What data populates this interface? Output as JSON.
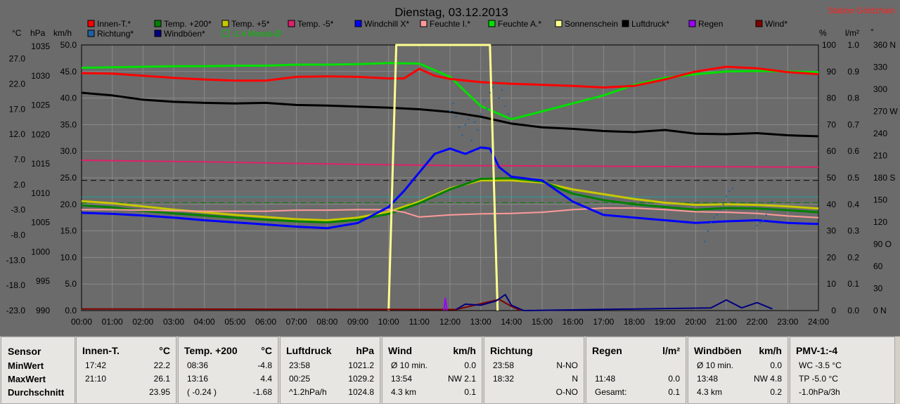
{
  "title": "Dienstag, 03.12.2013",
  "station": "Station Göritzhain",
  "legend": [
    {
      "label": "Innen-T.*",
      "color": "#ff0000"
    },
    {
      "label": "Temp. +200*",
      "color": "#008000"
    },
    {
      "label": "Temp. +5*",
      "color": "#c8c800"
    },
    {
      "label": "Temp. -5*",
      "color": "#e0206a"
    },
    {
      "label": "Windchill X*",
      "color": "#0000ff"
    },
    {
      "label": "Feuchte I.*",
      "color": "#ff9a9a"
    },
    {
      "label": "Feuchte A.*",
      "color": "#00e000"
    },
    {
      "label": "Sonnenschein",
      "color": "#ffff90"
    },
    {
      "label": "Luftdruck*",
      "color": "#000000"
    },
    {
      "label": "Regen",
      "color": "#9a00ff"
    },
    {
      "label": "Wind*",
      "color": "#800000"
    },
    {
      "label": "Richtung*",
      "color": "#2060a0"
    },
    {
      "label": "Windböen*",
      "color": "#000080"
    },
    {
      "label": "-1.4 Monat-Ø",
      "color": "#00c000"
    }
  ],
  "axis_units": {
    "celsius": "°C",
    "hpa": "hPa",
    "kmh": "km/h",
    "percent": "%",
    "lm2": "l/m²",
    "deg": "°"
  },
  "chart_data": {
    "type": "line",
    "x_ticks": [
      "00:00",
      "01:00",
      "02:00",
      "03:00",
      "04:00",
      "05:00",
      "06:00",
      "07:00",
      "08:00",
      "09:00",
      "10:00",
      "11:00",
      "12:00",
      "13:00",
      "14:00",
      "15:00",
      "16:00",
      "17:00",
      "18:00",
      "19:00",
      "20:00",
      "21:00",
      "22:00",
      "23:00",
      "24:00"
    ],
    "xlim": [
      0,
      24
    ],
    "y_celsius_ticks": [
      "27.0",
      "22.0",
      "17.0",
      "12.0",
      "7.0",
      "2.0",
      "-3.0",
      "-8.0",
      "-13.0",
      "-18.0",
      "-23.0"
    ],
    "y_hpa_ticks": [
      "1035",
      "1030",
      "1025",
      "1020",
      "1015",
      "1010",
      "1005",
      "1000",
      "995",
      "990"
    ],
    "y_kmh_ticks": [
      "50.0",
      "45.0",
      "40.0",
      "35.0",
      "30.0",
      "25.0",
      "20.0",
      "15.0",
      "10.0",
      "5.0",
      "0.0"
    ],
    "y_percent_ticks": [
      "100",
      "90",
      "80",
      "70",
      "60",
      "50",
      "40",
      "30",
      "20",
      "10",
      "0"
    ],
    "y_lm2_ticks": [
      "1.0",
      "0.9",
      "0.8",
      "0.7",
      "0.6",
      "0.5",
      "0.4",
      "0.3",
      "0.2",
      "0.1",
      "0.0"
    ],
    "y_deg_ticks": [
      "360 N",
      "330",
      "300",
      "270 W",
      "240",
      "210",
      "180 S",
      "150",
      "120",
      "90 O",
      "60",
      "30",
      "0 N"
    ],
    "ylim_kmh": [
      0,
      50
    ],
    "grid": true,
    "series": [
      {
        "name": "Luftdruck*",
        "axis": "kmh",
        "color": "#000000",
        "x": [
          0,
          1,
          2,
          3,
          4,
          5,
          6,
          7,
          8,
          9,
          10,
          11,
          12,
          13,
          14,
          15,
          16,
          17,
          18,
          19,
          20,
          21,
          22,
          23,
          24
        ],
        "y": [
          41.0,
          40.5,
          39.7,
          39.3,
          39.1,
          39.0,
          39.1,
          38.7,
          38.6,
          38.4,
          38.2,
          37.9,
          37.4,
          36.5,
          35.2,
          34.5,
          34.2,
          33.8,
          33.6,
          34.0,
          33.3,
          33.2,
          33.4,
          33.0,
          32.8
        ]
      },
      {
        "name": "Feuchte A.*",
        "axis": "kmh",
        "color": "#00e000",
        "x": [
          0,
          1,
          2,
          3,
          4,
          5,
          6,
          7,
          8,
          9,
          10,
          11,
          12,
          13,
          14,
          15,
          16,
          17,
          18,
          19,
          20,
          21,
          22,
          23,
          24
        ],
        "y": [
          45.7,
          45.8,
          45.9,
          46.0,
          46.0,
          46.1,
          46.1,
          46.3,
          46.3,
          46.4,
          46.6,
          46.5,
          44.0,
          38.5,
          36.0,
          37.5,
          39.0,
          40.5,
          42.5,
          43.8,
          44.5,
          45.0,
          45.1,
          45.0,
          44.9
        ]
      },
      {
        "name": "Innen-T.*",
        "axis": "kmh",
        "color": "#ff0000",
        "x": [
          0,
          1,
          2,
          3,
          4,
          5,
          6,
          7,
          8,
          9,
          10,
          10.5,
          11,
          11.5,
          12,
          13,
          14,
          15,
          16,
          17,
          18,
          19,
          20,
          21,
          22,
          23,
          24
        ],
        "y": [
          44.7,
          44.6,
          44.2,
          43.8,
          43.5,
          43.3,
          43.3,
          44.0,
          44.1,
          44.0,
          43.7,
          43.7,
          45.5,
          44.2,
          43.6,
          43.0,
          42.7,
          42.5,
          42.3,
          42.0,
          42.3,
          43.5,
          45.0,
          45.9,
          45.6,
          44.9,
          44.5
        ]
      },
      {
        "name": "Temp. -5*",
        "axis": "kmh",
        "color": "#e0206a",
        "x": [
          0,
          4,
          8,
          12,
          16,
          20,
          24
        ],
        "y": [
          28.3,
          28.0,
          27.6,
          27.3,
          27.2,
          27.1,
          27.0
        ]
      },
      {
        "name": "Temp. +5*",
        "axis": "kmh",
        "color": "#c8c800",
        "x": [
          0,
          1,
          2,
          3,
          4,
          5,
          6,
          7,
          8,
          9,
          10,
          11,
          12,
          13,
          14,
          15,
          16,
          17,
          18,
          19,
          20,
          21,
          22,
          23,
          24
        ],
        "y": [
          20.6,
          20.2,
          19.6,
          19.0,
          18.5,
          18.0,
          17.6,
          17.2,
          17.0,
          17.5,
          18.6,
          20.5,
          23.0,
          24.5,
          24.5,
          24.1,
          22.8,
          21.9,
          21.0,
          20.3,
          19.9,
          20.0,
          19.9,
          19.6,
          19.2
        ]
      },
      {
        "name": "Temp. +200*",
        "axis": "kmh",
        "color": "#008000",
        "x": [
          0,
          1,
          2,
          3,
          4,
          5,
          6,
          7,
          8,
          9,
          10,
          11,
          12,
          13,
          14,
          15,
          16,
          17,
          18,
          19,
          20,
          21,
          22,
          23,
          24
        ],
        "y": [
          19.8,
          19.4,
          18.8,
          18.3,
          17.9,
          17.5,
          17.1,
          16.8,
          16.6,
          17.1,
          18.2,
          20.2,
          22.8,
          24.8,
          24.9,
          24.3,
          22.0,
          20.8,
          20.0,
          19.5,
          19.0,
          19.3,
          19.2,
          18.9,
          18.5
        ]
      },
      {
        "name": "Feuchte I.*",
        "axis": "kmh",
        "color": "#ff9a9a",
        "x": [
          0,
          1,
          2,
          3,
          4,
          5,
          6,
          7,
          8,
          9,
          10,
          10.5,
          11,
          12,
          13,
          14,
          15,
          16,
          17,
          18,
          19,
          20,
          21,
          22,
          23,
          24
        ],
        "y": [
          19.0,
          19.0,
          18.9,
          18.8,
          18.7,
          18.7,
          18.7,
          18.9,
          18.9,
          19.0,
          19.0,
          18.5,
          17.6,
          18.0,
          18.2,
          18.3,
          18.5,
          19.0,
          19.3,
          19.3,
          19.0,
          18.6,
          18.5,
          18.3,
          17.8,
          17.5
        ]
      },
      {
        "name": "Windchill X*",
        "axis": "kmh",
        "color": "#0000ff",
        "x": [
          0,
          1,
          2,
          3,
          4,
          5,
          6,
          7,
          8,
          9,
          10,
          10.5,
          11,
          11.5,
          12,
          12.5,
          13,
          13.3,
          13.6,
          14,
          15,
          16,
          17,
          18,
          19,
          20,
          21,
          22,
          23,
          24
        ],
        "y": [
          18.4,
          18.2,
          17.9,
          17.5,
          17.0,
          16.6,
          16.2,
          15.8,
          15.5,
          16.5,
          19.5,
          22.5,
          26.0,
          29.5,
          30.5,
          29.5,
          30.7,
          30.5,
          27.0,
          25.2,
          24.5,
          20.5,
          18.0,
          17.5,
          17.0,
          16.5,
          16.8,
          17.0,
          16.5,
          16.3
        ]
      },
      {
        "name": "Sonnenschein",
        "axis": "kmh",
        "color": "#ffff90",
        "x": [
          10.0,
          10.25,
          13.3,
          13.55
        ],
        "y": [
          0,
          50,
          50,
          0
        ]
      },
      {
        "name": "Wind*",
        "axis": "kmh",
        "color": "#800000",
        "x": [
          0,
          0.9,
          12.2,
          12.8,
          13.6,
          14.0,
          14.3
        ],
        "y": [
          0.3,
          0.3,
          0.2,
          1.0,
          2.1,
          0.8,
          0.0
        ]
      },
      {
        "name": "Windböen*",
        "axis": "kmh",
        "color": "#000080",
        "x": [
          12.2,
          12.5,
          13.0,
          13.5,
          13.8,
          14.0,
          14.4,
          20.5,
          21.0,
          21.5,
          22.0,
          22.5
        ],
        "y": [
          0.2,
          1.2,
          1.0,
          1.8,
          3.0,
          1.0,
          0.0,
          0.5,
          2.0,
          0.5,
          1.5,
          0.3
        ]
      },
      {
        "name": "Regen",
        "axis": "kmh",
        "color": "#9a00ff",
        "x": [
          11.8,
          11.85,
          11.9
        ],
        "y": [
          0,
          2.3,
          0
        ]
      }
    ],
    "reference_lines": [
      {
        "axis": "kmh",
        "value": 24.5,
        "color": "#000000",
        "style": "dashed"
      },
      {
        "axis": "kmh",
        "value": 20.3,
        "color": "#008000",
        "style": "dashed"
      },
      {
        "axis": "kmh",
        "value": 21.4,
        "color": "#20a0a0",
        "style": "solid"
      }
    ],
    "direction_points": {
      "color": "#2060a0",
      "x": [
        12.0,
        12.1,
        12.2,
        12.3,
        12.4,
        12.5,
        12.6,
        12.7,
        12.8,
        12.9,
        13.0,
        13.1,
        13.2,
        13.3,
        13.4,
        13.5,
        13.6,
        13.7,
        13.8,
        13.9,
        20.3,
        20.4,
        20.5,
        20.6,
        20.7,
        20.8,
        20.9,
        21.0,
        21.1,
        21.2,
        22.0,
        22.1,
        22.2,
        22.3,
        22.4,
        22.5
      ],
      "y": [
        37.5,
        39.0,
        36.5,
        34.5,
        33.0,
        35.0,
        36.0,
        32.0,
        35.5,
        34.0,
        37.0,
        39.5,
        38.0,
        41.0,
        42.0,
        43.0,
        40.0,
        41.5,
        38.5,
        37.0,
        13.0,
        15.0,
        16.5,
        17.5,
        18.0,
        19.0,
        20.0,
        21.5,
        22.5,
        23.0,
        16.0,
        16.5,
        17.0,
        18.0,
        19.0,
        20.5
      ]
    }
  },
  "table": {
    "row_labels": [
      "Sensor",
      "MinWert",
      "MaxWert",
      "Durchschnitt"
    ],
    "columns": [
      {
        "header": "Innen-T.",
        "unit": "°C",
        "rows": [
          [
            "17:42",
            "22.2"
          ],
          [
            "21:10",
            "26.1"
          ],
          [
            "",
            "23.95"
          ]
        ]
      },
      {
        "header": "Temp. +200",
        "unit": "°C",
        "rows": [
          [
            "08:36",
            "-4.8"
          ],
          [
            "13:16",
            "4.4"
          ],
          [
            "( -0.24 )",
            "-1.68"
          ]
        ]
      },
      {
        "header": "Luftdruck",
        "unit": "hPa",
        "rows": [
          [
            "23:58",
            "1021.2"
          ],
          [
            "00:25",
            "1029.2"
          ],
          [
            "^1.2hPa/h",
            "1024.8"
          ]
        ]
      },
      {
        "header": "Wind",
        "unit": "km/h",
        "rows": [
          [
            "Ø 10 min.",
            "0.0"
          ],
          [
            "13:54",
            "NW 2.1"
          ],
          [
            "4.3 km",
            "0.1"
          ]
        ]
      },
      {
        "header": "Richtung",
        "unit": "",
        "rows": [
          [
            "23:58",
            "N-NO"
          ],
          [
            "18:32",
            "N"
          ],
          [
            "",
            "O-NO"
          ]
        ]
      },
      {
        "header": "Regen",
        "unit": "l/m²",
        "rows": [
          [
            "",
            ""
          ],
          [
            "11:48",
            "0.0"
          ],
          [
            "Gesamt:",
            "0.1"
          ]
        ]
      },
      {
        "header": "Windböen",
        "unit": "km/h",
        "rows": [
          [
            "Ø 10 min.",
            "0.0"
          ],
          [
            "13:48",
            "NW 4.8"
          ],
          [
            "4.3 km",
            "0.2"
          ]
        ]
      },
      {
        "header": "PMV-1:-4",
        "unit": "",
        "rows": [
          [
            "WC -3.5 °C",
            ""
          ],
          [
            "TP -5.0 °C",
            ""
          ],
          [
            "-1.0hPa/3h",
            ""
          ]
        ]
      }
    ]
  }
}
